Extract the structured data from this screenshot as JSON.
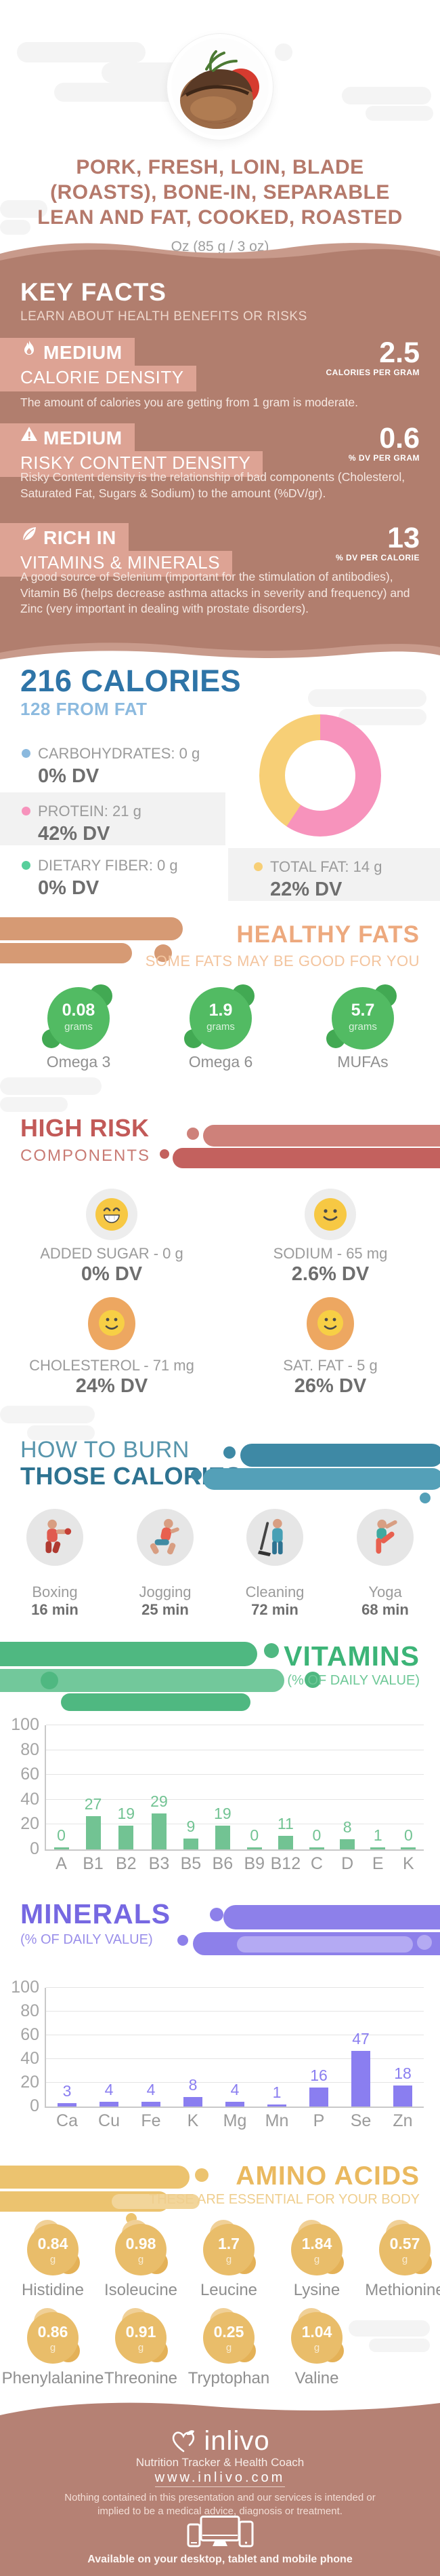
{
  "hero": {
    "title": "PORK, FRESH, LOIN, BLADE (ROASTS), BONE-IN, SEPARABLE LEAN AND FAT, COOKED, ROASTED",
    "serving": "Oz (85 g / 3 oz)"
  },
  "key_facts": {
    "title": "KEY FACTS",
    "subtitle": "LEARN ABOUT HEALTH BENEFITS OR RISKS",
    "items": [
      {
        "icon": "flame-icon",
        "level": "MEDIUM",
        "name": "CALORIE DENSITY",
        "value": "2.5",
        "unit": "CALORIES PER GRAM",
        "description": "The amount of calories you are getting from 1 gram is moderate."
      },
      {
        "icon": "warning-icon",
        "level": "MEDIUM",
        "name": "RISKY CONTENT DENSITY",
        "value": "0.6",
        "unit": "% DV PER GRAM",
        "description": "Risky Content density is the relationship of bad components (Cholesterol, Saturated Fat, Sugars & Sodium) to the amount (%DV/gr)."
      },
      {
        "icon": "leaf-icon",
        "level": "RICH IN",
        "name": "VITAMINS & MINERALS",
        "value": "13",
        "unit": "% DV PER CALORIE",
        "description": "A good source of Selenium (important for the stimulation of antibodies), Vitamin B6 (helps decrease asthma attacks in severity and frequency) and Zinc (very important in dealing with prostate disorders)."
      }
    ]
  },
  "calories": {
    "title": "216 CALORIES",
    "subtitle": "128 FROM FAT",
    "legend": [
      {
        "label": "CARBOHYDRATES: 0 g",
        "dv": "0% DV",
        "color": "#8bb9de"
      },
      {
        "label": "PROTEIN: 21 g",
        "dv": "42% DV",
        "color": "#f793bc"
      },
      {
        "label": "DIETARY FIBER: 0 g",
        "dv": "0% DV",
        "color": "#57cf9b"
      },
      {
        "label": "TOTAL FAT: 14 g",
        "dv": "22% DV",
        "color": "#f7cf76"
      }
    ]
  },
  "healthy_fats": {
    "title": "HEALTHY FATS",
    "subtitle": "SOME FATS MAY BE GOOD FOR YOU",
    "items": [
      {
        "value": "0.08",
        "unit": "grams",
        "label": "Omega 3"
      },
      {
        "value": "1.9",
        "unit": "grams",
        "label": "Omega 6"
      },
      {
        "value": "5.7",
        "unit": "grams",
        "label": "MUFAs"
      }
    ]
  },
  "high_risk": {
    "title": "HIGH RISK",
    "subtitle": "COMPONENTS",
    "items": [
      {
        "icon": "grin-face-icon",
        "label": "ADDED SUGAR - 0 g",
        "dv": "0% DV"
      },
      {
        "icon": "smile-face-icon",
        "label": "SODIUM - 65 mg",
        "dv": "2.6% DV"
      },
      {
        "icon": "orange-smile-face-icon",
        "label": "CHOLESTEROL - 71 mg",
        "dv": "24% DV"
      },
      {
        "icon": "orange-smile-face-icon",
        "label": "SAT. FAT - 5 g",
        "dv": "26% DV"
      }
    ]
  },
  "burn": {
    "title_line1": "HOW TO BURN",
    "title_line2": "THOSE CALORIES",
    "activities": [
      {
        "icon": "boxing-icon",
        "label": "Boxing",
        "duration": "16 min"
      },
      {
        "icon": "jogging-icon",
        "label": "Jogging",
        "duration": "25 min"
      },
      {
        "icon": "cleaning-icon",
        "label": "Cleaning",
        "duration": "72 min"
      },
      {
        "icon": "yoga-icon",
        "label": "Yoga",
        "duration": "68 min"
      }
    ]
  },
  "vitamins": {
    "title": "VITAMINS",
    "subtitle": "(% OF DAILY VALUE)"
  },
  "minerals": {
    "title": "MINERALS",
    "subtitle": "(% OF DAILY VALUE)"
  },
  "amino_acids": {
    "title": "AMINO ACIDS",
    "subtitle": "THESE ARE ESSENTIAL FOR YOUR BODY",
    "items": [
      {
        "value": "0.84",
        "unit": "g",
        "label": "Histidine"
      },
      {
        "value": "0.98",
        "unit": "g",
        "label": "Isoleucine"
      },
      {
        "value": "1.7",
        "unit": "g",
        "label": "Leucine"
      },
      {
        "value": "1.84",
        "unit": "g",
        "label": "Lysine"
      },
      {
        "value": "0.57",
        "unit": "g",
        "label": "Methionine"
      },
      {
        "value": "0.86",
        "unit": "g",
        "label": "Phenylalanine"
      },
      {
        "value": "0.91",
        "unit": "g",
        "label": "Threonine"
      },
      {
        "value": "0.25",
        "unit": "g",
        "label": "Tryptophan"
      },
      {
        "value": "1.04",
        "unit": "g",
        "label": "Valine"
      }
    ]
  },
  "footer": {
    "brand": "inlivo",
    "tagline": "Nutrition Tracker & Health Coach",
    "website": "www.inlivo.com",
    "disclaimer": "Nothing contained in this presentation and our services is intended or implied to be a medical advice, diagnosis or treatment.",
    "availability": "Available on your desktop, tablet and mobile phone"
  },
  "chart_data": [
    {
      "type": "pie",
      "title": "Calorie breakdown donut",
      "segments": [
        {
          "label": "pink share (calories from fat 128/216)",
          "percent": 59.3,
          "color": "#f793bc"
        },
        {
          "label": "yellow share (other calories 88/216)",
          "percent": 40.7,
          "color": "#f7cf76"
        }
      ],
      "legend_position": "left",
      "donut_hole": true
    },
    {
      "type": "bar",
      "title": "VITAMINS",
      "subtitle": "(% OF DAILY VALUE)",
      "categories": [
        "A",
        "B1",
        "B2",
        "B3",
        "B5",
        "B6",
        "B9",
        "B12",
        "C",
        "D",
        "E",
        "K"
      ],
      "values": [
        0,
        27,
        19,
        29,
        9,
        19,
        0,
        11,
        0,
        8,
        1,
        0
      ],
      "ylim": [
        0,
        100
      ],
      "yticks": [
        0,
        20,
        40,
        60,
        80,
        100
      ],
      "grid": true,
      "bar_color": "#72c393",
      "label_color": "#72c393",
      "xlabel": "",
      "ylabel": ""
    },
    {
      "type": "bar",
      "title": "MINERALS",
      "subtitle": "(% OF DAILY VALUE)",
      "categories": [
        "Ca",
        "Cu",
        "Fe",
        "K",
        "Mg",
        "Mn",
        "P",
        "Se",
        "Zn"
      ],
      "values": [
        3,
        4,
        4,
        8,
        4,
        1,
        16,
        47,
        18
      ],
      "ylim": [
        0,
        100
      ],
      "yticks": [
        0,
        20,
        40,
        60,
        80,
        100
      ],
      "grid": true,
      "bar_color": "#8a7ef0",
      "label_color": "#8a7ef0",
      "xlabel": "",
      "ylabel": ""
    }
  ]
}
